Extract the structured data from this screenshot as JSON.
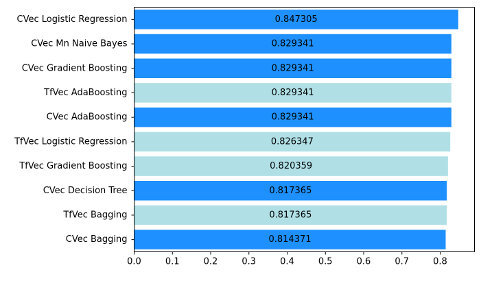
{
  "chart_data": {
    "type": "bar",
    "orientation": "horizontal",
    "categories": [
      "CVec Logistic Regression",
      "CVec Mn Naive Bayes",
      "CVec Gradient Boosting",
      "TfVec AdaBoosting",
      "CVec AdaBoosting",
      "TfVec Logistic Regression",
      "TfVec Gradient Boosting",
      "CVec Decision Tree",
      "TfVec Bagging",
      "CVec Bagging"
    ],
    "values": [
      0.847305,
      0.829341,
      0.829341,
      0.829341,
      0.829341,
      0.826347,
      0.820359,
      0.817365,
      0.817365,
      0.814371
    ],
    "value_labels": [
      "0.847305",
      "0.829341",
      "0.829341",
      "0.829341",
      "0.829341",
      "0.826347",
      "0.820359",
      "0.817365",
      "0.817365",
      "0.814371"
    ],
    "bar_colors": [
      "#1e90ff",
      "#1e90ff",
      "#1e90ff",
      "#b0e0e6",
      "#1e90ff",
      "#b0e0e6",
      "#b0e0e6",
      "#1e90ff",
      "#b0e0e6",
      "#1e90ff"
    ],
    "xticks": [
      "0.0",
      "0.1",
      "0.2",
      "0.3",
      "0.4",
      "0.5",
      "0.6",
      "0.7",
      "0.8"
    ],
    "xlim": [
      0,
      0.8897
    ],
    "title": "",
    "xlabel": "",
    "ylabel": "",
    "grid": false,
    "legend": "none"
  }
}
